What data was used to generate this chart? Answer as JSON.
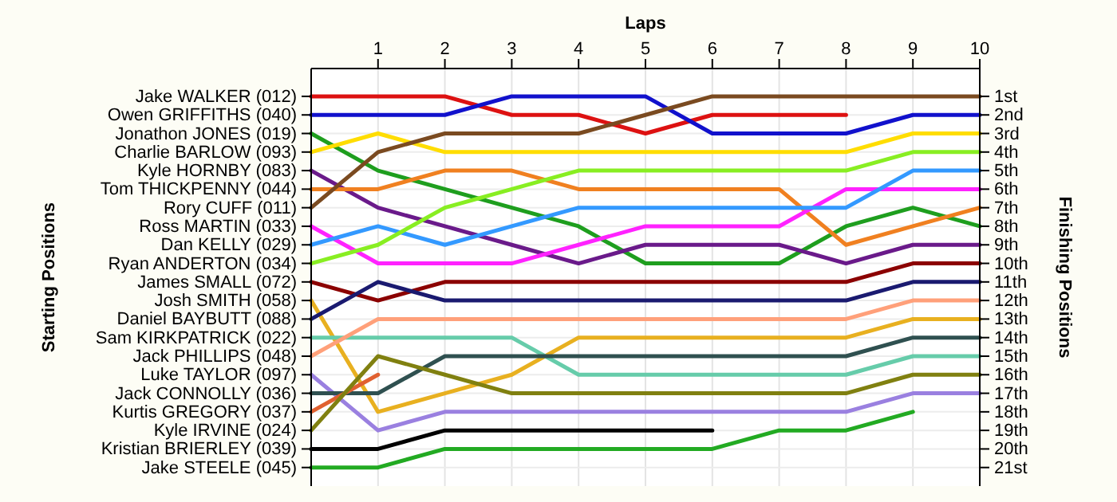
{
  "chart_data": {
    "type": "line",
    "xlabel": "Laps",
    "annotations": [
      "Starting Positions"
    ],
    "y2label": "Finishing Positions",
    "x": [
      0,
      1,
      2,
      3,
      4,
      5,
      6,
      7,
      8,
      9,
      10
    ],
    "xlim": [
      0,
      10
    ],
    "xticks": [
      1,
      2,
      3,
      4,
      5,
      6,
      7,
      8,
      9,
      10
    ],
    "y_categories": [
      "Jake WALKER (012)",
      "Owen GRIFFITHS (040)",
      "Jonathon JONES (019)",
      "Charlie BARLOW (093)",
      "Kyle HORNBY (083)",
      "Tom THICKPENNY (044)",
      "Rory CUFF (011)",
      "Ross MARTIN (033)",
      "Dan KELLY (029)",
      "Ryan ANDERTON (034)",
      "James SMALL (072)",
      "Josh SMITH (058)",
      "Daniel BAYBUTT (088)",
      "Sam KIRKPATRICK (022)",
      "Jack PHILLIPS (048)",
      "Luke TAYLOR (097)",
      "Jack CONNOLLY (036)",
      "Kurtis GREGORY (037)",
      "Kyle IRVINE (024)",
      "Kristian BRIERLEY (039)",
      "Jake STEELE (045)"
    ],
    "y2lim": [
      22,
      -0.5
    ],
    "y2ticks": [
      {
        "value": 1,
        "label": "1st"
      },
      {
        "value": 2,
        "label": "2nd"
      },
      {
        "value": 3,
        "label": "3rd"
      },
      {
        "value": 4,
        "label": "4th"
      },
      {
        "value": 5,
        "label": "5th"
      },
      {
        "value": 6,
        "label": "6th"
      },
      {
        "value": 7,
        "label": "7th"
      },
      {
        "value": 8,
        "label": "8th"
      },
      {
        "value": 9,
        "label": "9th"
      },
      {
        "value": 10,
        "label": "10th"
      },
      {
        "value": 11,
        "label": "11th"
      },
      {
        "value": 12,
        "label": "12th"
      },
      {
        "value": 13,
        "label": "13th"
      },
      {
        "value": 14,
        "label": "14th"
      },
      {
        "value": 15,
        "label": "15th"
      },
      {
        "value": 16,
        "label": "16th"
      },
      {
        "value": 17,
        "label": "17th"
      },
      {
        "value": 18,
        "label": "18th"
      },
      {
        "value": 19,
        "label": "19th"
      },
      {
        "value": 20,
        "label": "20th"
      },
      {
        "value": 21,
        "label": "21st"
      }
    ],
    "grid": true,
    "series": [
      {
        "axis": "y2",
        "color": "#dd1111",
        "values": [
          1,
          1,
          1,
          2,
          2,
          3,
          2,
          2,
          2,
          null,
          null
        ]
      },
      {
        "axis": "y2",
        "color": "#1111cc",
        "values": [
          2,
          2,
          2,
          1,
          1,
          1,
          3,
          3,
          3,
          2,
          2
        ]
      },
      {
        "axis": "y2",
        "color": "#1e9e1e",
        "values": [
          3,
          5,
          6,
          7,
          8,
          10,
          10,
          10,
          8,
          7,
          8
        ]
      },
      {
        "axis": "y2",
        "color": "#ffdd00",
        "values": [
          4,
          3,
          4,
          4,
          4,
          4,
          4,
          4,
          4,
          3,
          3
        ]
      },
      {
        "axis": "y2",
        "color": "#6a1a8a",
        "values": [
          5,
          7,
          8,
          9,
          10,
          9,
          9,
          9,
          10,
          9,
          9
        ]
      },
      {
        "axis": "y2",
        "color": "#f08020",
        "values": [
          6,
          6,
          5,
          5,
          6,
          6,
          6,
          6,
          9,
          8,
          7
        ]
      },
      {
        "axis": "y2",
        "color": "#7a4a20",
        "values": [
          7,
          4,
          3,
          3,
          3,
          2,
          1,
          1,
          1,
          1,
          1
        ]
      },
      {
        "axis": "y2",
        "color": "#ff22ff",
        "values": [
          8,
          10,
          10,
          10,
          9,
          8,
          8,
          8,
          6,
          6,
          6
        ]
      },
      {
        "axis": "y2",
        "color": "#3399ff",
        "values": [
          9,
          8,
          9,
          8,
          7,
          7,
          7,
          7,
          7,
          5,
          5
        ]
      },
      {
        "axis": "y2",
        "color": "#88ee22",
        "values": [
          10,
          9,
          7,
          6,
          5,
          5,
          5,
          5,
          5,
          4,
          4
        ]
      },
      {
        "axis": "y2",
        "color": "#8b0000",
        "values": [
          11,
          12,
          11,
          11,
          11,
          11,
          11,
          11,
          11,
          10,
          10
        ]
      },
      {
        "axis": "y2",
        "color": "#e8b020",
        "values": [
          12,
          18,
          17,
          16,
          14,
          14,
          14,
          14,
          14,
          13,
          13
        ]
      },
      {
        "axis": "y2",
        "color": "#1a1a70",
        "values": [
          13,
          11,
          12,
          12,
          12,
          12,
          12,
          12,
          12,
          11,
          11
        ]
      },
      {
        "axis": "y2",
        "color": "#66ccaa",
        "values": [
          14,
          14,
          14,
          14,
          16,
          16,
          16,
          16,
          16,
          15,
          15
        ]
      },
      {
        "axis": "y2",
        "color": "#ffa07a",
        "values": [
          15,
          13,
          13,
          13,
          13,
          13,
          13,
          13,
          13,
          12,
          12
        ]
      },
      {
        "axis": "y2",
        "color": "#9a80e0",
        "values": [
          16,
          19,
          18,
          18,
          18,
          18,
          18,
          18,
          18,
          17,
          17
        ]
      },
      {
        "axis": "y2",
        "color": "#2f5050",
        "values": [
          17,
          17,
          15,
          15,
          15,
          15,
          15,
          15,
          15,
          14,
          14
        ]
      },
      {
        "axis": "y2",
        "color": "#e06030",
        "values": [
          18,
          16,
          null,
          null,
          null,
          null,
          null,
          null,
          null,
          null,
          null
        ]
      },
      {
        "axis": "y2",
        "color": "#808010",
        "values": [
          19,
          15,
          16,
          17,
          17,
          17,
          17,
          17,
          17,
          16,
          16
        ]
      },
      {
        "axis": "y2",
        "color": "#000000",
        "values": [
          20,
          20,
          19,
          19,
          19,
          19,
          19,
          null,
          null,
          null,
          null
        ]
      },
      {
        "axis": "y2",
        "color": "#22aa22",
        "values": [
          21,
          21,
          20,
          20,
          20,
          20,
          20,
          19,
          19,
          18,
          null
        ]
      }
    ]
  }
}
